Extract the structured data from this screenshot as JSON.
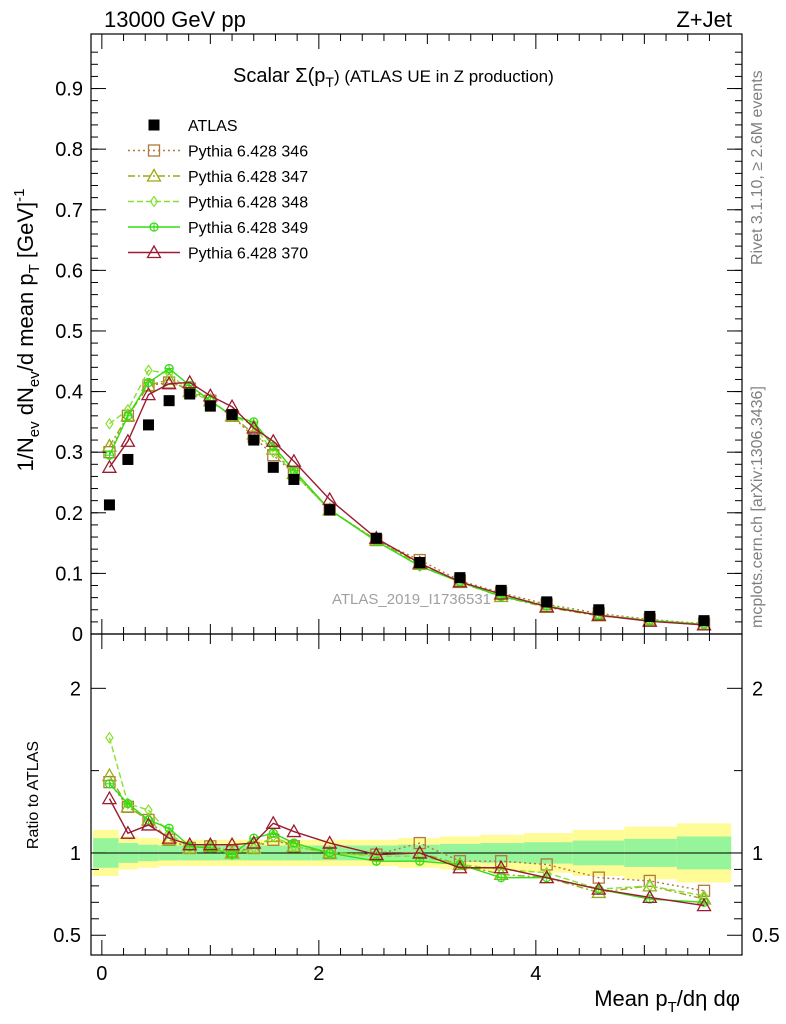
{
  "header": {
    "left": "13000 GeV pp",
    "right": "Z+Jet"
  },
  "side_labels": {
    "rivet": "Rivet 3.1.10, ≥ 2.6M events",
    "mcplots": "mcplots.cern.ch [arXiv:1306.3436]"
  },
  "watermark": "ATLAS_2019_I1736531",
  "chart_data": [
    {
      "type": "scatter",
      "title_main": "Scalar Σ(p",
      "title_sub": "T",
      "title_rest": ") (ATLAS UE in Z production)",
      "ylabel": "1/N_ev dN_ev/d mean p_T [GeV]^-1",
      "xlabel": "Mean p_T/dη dφ",
      "xlim": [
        -0.1,
        5.9
      ],
      "ylim": [
        0,
        0.99
      ],
      "yticks": [
        "0",
        "0.1",
        "0.2",
        "0.3",
        "0.4",
        "0.5",
        "0.6",
        "0.7",
        "0.8",
        "0.9"
      ],
      "xticks": [
        "0",
        "2",
        "4"
      ],
      "x": [
        0.07,
        0.24,
        0.43,
        0.62,
        0.81,
        1.0,
        1.2,
        1.4,
        1.58,
        1.77,
        2.1,
        2.53,
        2.93,
        3.3,
        3.68,
        4.1,
        4.58,
        5.05,
        5.55
      ],
      "legend_position": "top-left",
      "series": [
        {
          "name": "ATLAS",
          "color": "#000000",
          "marker": "square-filled",
          "values": [
            0.213,
            0.288,
            0.345,
            0.385,
            0.396,
            0.376,
            0.362,
            0.32,
            0.275,
            0.255,
            0.205,
            0.158,
            0.118,
            0.093,
            0.072,
            0.053,
            0.04,
            0.029,
            0.022
          ]
        },
        {
          "name": "Pythia 6.428 346",
          "color": "#b07a3c",
          "marker": "square-open",
          "dash": "2,3",
          "values": [
            0.3,
            0.36,
            0.41,
            0.415,
            0.405,
            0.385,
            0.36,
            0.325,
            0.295,
            0.265,
            0.205,
            0.155,
            0.122,
            0.088,
            0.068,
            0.049,
            0.034,
            0.024,
            0.017
          ]
        },
        {
          "name": "Pythia 6.428 347",
          "color": "#9aaa14",
          "marker": "triangle-open",
          "dash": "7,3,2,3",
          "values": [
            0.31,
            0.36,
            0.41,
            0.42,
            0.4,
            0.385,
            0.36,
            0.33,
            0.305,
            0.265,
            0.205,
            0.155,
            0.115,
            0.085,
            0.062,
            0.044,
            0.03,
            0.022,
            0.015
          ]
        },
        {
          "name": "Pythia 6.428 348",
          "color": "#88e030",
          "marker": "diamond-open",
          "dash": "6,3",
          "values": [
            0.347,
            0.37,
            0.435,
            0.43,
            0.4,
            0.385,
            0.36,
            0.345,
            0.3,
            0.265,
            0.205,
            0.154,
            0.112,
            0.086,
            0.064,
            0.047,
            0.031,
            0.023,
            0.016
          ]
        },
        {
          "name": "Pythia 6.428 349",
          "color": "#33dd11",
          "marker": "circle-cross",
          "dash": "",
          "values": [
            0.295,
            0.36,
            0.415,
            0.438,
            0.41,
            0.385,
            0.36,
            0.35,
            0.31,
            0.27,
            0.205,
            0.153,
            0.112,
            0.086,
            0.062,
            0.046,
            0.031,
            0.022,
            0.016
          ]
        },
        {
          "name": "Pythia 6.428 370",
          "color": "#9b1b30",
          "marker": "triangle-open",
          "dash": "",
          "values": [
            0.275,
            0.318,
            0.395,
            0.413,
            0.415,
            0.393,
            0.375,
            0.34,
            0.318,
            0.285,
            0.222,
            0.158,
            0.117,
            0.086,
            0.066,
            0.045,
            0.031,
            0.021,
            0.015
          ]
        }
      ]
    },
    {
      "type": "line",
      "ylabel": "Ratio to ATLAS",
      "ylim": [
        0.38,
        2.33
      ],
      "yticks": [
        "0.5",
        "1",
        "2"
      ],
      "band_inner": [
        0.09,
        0.06,
        0.05,
        0.045,
        0.045,
        0.045,
        0.045,
        0.045,
        0.045,
        0.045,
        0.045,
        0.045,
        0.05,
        0.055,
        0.06,
        0.065,
        0.075,
        0.085,
        0.1
      ],
      "band_outer": [
        0.14,
        0.1,
        0.09,
        0.08,
        0.08,
        0.08,
        0.08,
        0.08,
        0.08,
        0.08,
        0.08,
        0.08,
        0.09,
        0.1,
        0.11,
        0.12,
        0.14,
        0.16,
        0.18
      ],
      "series": [
        {
          "name": "Pythia 6.428 346",
          "values": [
            1.43,
            1.28,
            1.2,
            1.08,
            1.03,
            1.04,
            1.01,
            1.03,
            1.08,
            1.04,
            1.0,
            0.99,
            1.06,
            0.95,
            0.95,
            0.93,
            0.85,
            0.83,
            0.77
          ]
        },
        {
          "name": "Pythia 6.428 347",
          "values": [
            1.47,
            1.28,
            1.2,
            1.08,
            1.03,
            1.04,
            1.0,
            1.03,
            1.1,
            1.04,
            1.0,
            0.99,
            1.0,
            0.93,
            0.87,
            0.85,
            0.76,
            0.8,
            0.72
          ]
        },
        {
          "name": "Pythia 6.428 348",
          "values": [
            1.7,
            1.3,
            1.26,
            1.12,
            1.03,
            1.04,
            0.99,
            1.03,
            1.1,
            1.04,
            1.0,
            0.98,
            0.98,
            0.93,
            0.9,
            0.88,
            0.78,
            0.8,
            0.74
          ]
        },
        {
          "name": "Pythia 6.428 349",
          "values": [
            1.42,
            1.3,
            1.2,
            1.15,
            1.04,
            1.03,
            0.99,
            1.09,
            1.12,
            1.06,
            1.0,
            0.95,
            0.95,
            0.93,
            0.85,
            0.85,
            0.78,
            0.72,
            0.7
          ]
        },
        {
          "name": "Pythia 6.428 370",
          "values": [
            1.33,
            1.12,
            1.17,
            1.09,
            1.05,
            1.05,
            1.05,
            1.06,
            1.18,
            1.13,
            1.06,
            0.99,
            1.0,
            0.91,
            0.91,
            0.85,
            0.78,
            0.73,
            0.68
          ]
        }
      ]
    }
  ]
}
